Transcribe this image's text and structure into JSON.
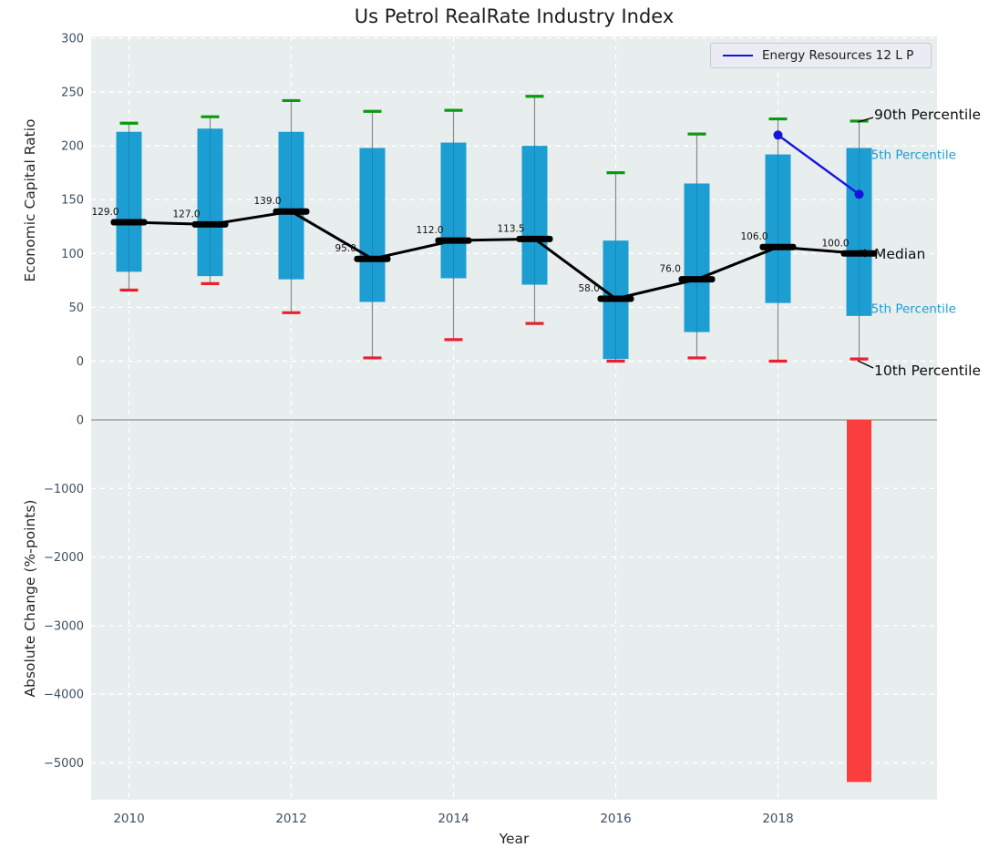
{
  "title": "Us Petrol RealRate Industry Index",
  "legend": {
    "label": "Energy Resources 12 L P",
    "line_color": "#1414dd"
  },
  "axes": {
    "top_ylabel": "Economic Capital Ratio",
    "bottom_ylabel": "Absolute Change (%-points)",
    "xlabel": "Year"
  },
  "annotations": {
    "p90": "90th Percentile",
    "p75": "75th Percentile",
    "median": "Median",
    "p25": "25th Percentile",
    "p10": "10th Percentile"
  },
  "colors": {
    "plot_bg": "#e8edee",
    "grid": "#ffffff",
    "box_fill": "#1d9ed3",
    "cap_high": "#0a9a12",
    "cap_low": "#ea2030",
    "median": "#000000",
    "series_line": "#1414dd",
    "neg_bar": "#fa3e3e",
    "tick_text": "#3d4f63",
    "whisker": "#8a8a8a",
    "zero_line": "#b3b3b3",
    "cyan_label": "#1d9ed3",
    "black_label": "#0d0d0d"
  },
  "chart_data": [
    {
      "type": "box",
      "title": "Us Petrol RealRate Industry Index",
      "xlabel": "Year",
      "ylabel": "Economic Capital Ratio",
      "ylim": [
        -28,
        302
      ],
      "yticks": [
        0,
        50,
        100,
        150,
        200,
        250,
        300
      ],
      "xticks": [
        2010,
        2012,
        2014,
        2016,
        2018
      ],
      "grid": true,
      "legend_position": "upper right",
      "years": [
        2010,
        2011,
        2012,
        2013,
        2014,
        2015,
        2016,
        2017,
        2018,
        2019
      ],
      "median": [
        129.0,
        127.0,
        139.0,
        95.0,
        112.0,
        113.5,
        58.0,
        76.0,
        106.0,
        100.0
      ],
      "p90": [
        221,
        227,
        242,
        232,
        233,
        246,
        175,
        211,
        225,
        223
      ],
      "p75": [
        213,
        216,
        213,
        198,
        203,
        200,
        112,
        165,
        192,
        198
      ],
      "p25": [
        83,
        79,
        76,
        55,
        77,
        71,
        2,
        27,
        54,
        42
      ],
      "p10": [
        66,
        72,
        45,
        3,
        20,
        35,
        0,
        3,
        0,
        2
      ],
      "series": [
        {
          "name": "Energy Resources 12 L P",
          "x": [
            2018,
            2019
          ],
          "y": [
            210,
            155
          ]
        }
      ]
    },
    {
      "type": "bar",
      "xlabel": "Year",
      "ylabel": "Absolute Change (%-points)",
      "ylim": [
        -5540,
        385
      ],
      "yticks": [
        0,
        -1000,
        -2000,
        -3000,
        -4000,
        -5000
      ],
      "xticks": [
        2010,
        2012,
        2014,
        2016,
        2018
      ],
      "grid": true,
      "x": [
        2019
      ],
      "values": [
        -5280
      ]
    }
  ]
}
